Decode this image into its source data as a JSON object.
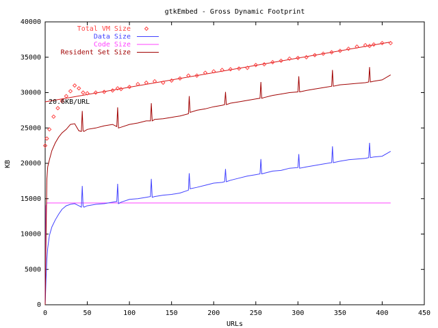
{
  "chart_data": {
    "type": "line",
    "title": "gtkEmbed - Gross Dynamic Footprint",
    "xlabel": "URLs",
    "ylabel": "KB",
    "xlim": [
      0,
      450
    ],
    "ylim": [
      0,
      40000
    ],
    "x_ticks": [
      0,
      50,
      100,
      150,
      200,
      250,
      300,
      350,
      400,
      450
    ],
    "y_ticks": [
      0,
      5000,
      10000,
      15000,
      20000,
      25000,
      30000,
      35000,
      40000
    ],
    "grid": false,
    "legend_position": "top-left",
    "annotation": "20.6KB/URL",
    "fit_line": {
      "label": "20.6KB/URL",
      "x": [
        0,
        410
      ],
      "y": [
        28700,
        37150
      ]
    },
    "series": [
      {
        "name": "Total VM Size",
        "style": "points",
        "color": "#ff4040",
        "x": [
          0,
          2,
          5,
          10,
          15,
          20,
          25,
          30,
          35,
          40,
          45,
          50,
          60,
          70,
          80,
          86,
          90,
          100,
          110,
          120,
          130,
          140,
          150,
          160,
          170,
          180,
          190,
          200,
          210,
          220,
          230,
          240,
          250,
          260,
          270,
          280,
          290,
          300,
          310,
          320,
          330,
          340,
          350,
          360,
          370,
          380,
          385,
          390,
          400,
          410
        ],
        "y": [
          22500,
          23500,
          24800,
          26600,
          27800,
          28800,
          29500,
          30200,
          31000,
          30600,
          30000,
          29900,
          30000,
          30100,
          30300,
          30600,
          30500,
          30800,
          31200,
          31400,
          31600,
          31400,
          31700,
          32000,
          32400,
          32400,
          32800,
          33000,
          33200,
          33300,
          33400,
          33500,
          33900,
          34000,
          34300,
          34500,
          34800,
          34900,
          35000,
          35300,
          35500,
          35700,
          35900,
          36200,
          36500,
          36700,
          36600,
          36800,
          37000,
          37000
        ]
      },
      {
        "name": "Data Size",
        "style": "line",
        "color": "#4040ff",
        "x": [
          0,
          1,
          2,
          3,
          5,
          8,
          12,
          16,
          20,
          25,
          30,
          35,
          40,
          43,
          44,
          45,
          46,
          50,
          60,
          70,
          80,
          85,
          86,
          87,
          90,
          100,
          110,
          120,
          125,
          126,
          127,
          130,
          140,
          150,
          160,
          170,
          171,
          172,
          180,
          190,
          200,
          210,
          213,
          214,
          215,
          220,
          230,
          240,
          250,
          255,
          256,
          257,
          260,
          270,
          280,
          290,
          300,
          301,
          302,
          310,
          320,
          330,
          340,
          341,
          342,
          350,
          360,
          370,
          380,
          384,
          385,
          386,
          390,
          400,
          410
        ],
        "y": [
          0,
          3500,
          6500,
          8000,
          9800,
          11000,
          12000,
          12800,
          13500,
          14000,
          14200,
          14300,
          14000,
          13800,
          16800,
          14000,
          13800,
          14000,
          14200,
          14300,
          14500,
          14600,
          17100,
          14300,
          14500,
          14900,
          15000,
          15200,
          15300,
          17800,
          15200,
          15300,
          15500,
          15600,
          15800,
          16200,
          18600,
          16400,
          16600,
          16900,
          17200,
          17300,
          17400,
          19200,
          17400,
          17600,
          17900,
          18200,
          18400,
          18500,
          20600,
          18500,
          18600,
          18900,
          19000,
          19300,
          19400,
          21300,
          19300,
          19500,
          19700,
          19900,
          20100,
          22400,
          20100,
          20300,
          20500,
          20600,
          20700,
          20800,
          22900,
          20800,
          20900,
          21000,
          21700
        ]
      },
      {
        "name": "Code Size",
        "style": "line",
        "color": "#ff40ff",
        "x": [
          0,
          1,
          2,
          410
        ],
        "y": [
          0,
          14000,
          14400,
          14400
        ]
      },
      {
        "name": "Resident Set Size",
        "style": "line",
        "color": "#a00000",
        "x": [
          0,
          1,
          2,
          3,
          5,
          8,
          12,
          16,
          20,
          25,
          30,
          35,
          40,
          43,
          44,
          45,
          46,
          50,
          60,
          70,
          80,
          85,
          86,
          87,
          90,
          100,
          110,
          120,
          125,
          126,
          127,
          130,
          140,
          150,
          160,
          170,
          171,
          172,
          180,
          190,
          200,
          210,
          213,
          214,
          215,
          220,
          230,
          240,
          250,
          255,
          256,
          257,
          260,
          270,
          280,
          290,
          300,
          301,
          302,
          310,
          320,
          330,
          340,
          341,
          342,
          350,
          360,
          370,
          380,
          384,
          385,
          386,
          390,
          400,
          410
        ],
        "y": [
          0,
          9000,
          17800,
          19500,
          20500,
          21800,
          22900,
          23700,
          24300,
          24800,
          25500,
          25600,
          24600,
          24500,
          27400,
          24600,
          24500,
          24800,
          25000,
          25300,
          25500,
          25200,
          27900,
          25000,
          25100,
          25500,
          25700,
          26000,
          26000,
          28500,
          26000,
          26200,
          26300,
          26500,
          26700,
          27000,
          29500,
          27200,
          27500,
          27700,
          28000,
          28200,
          28300,
          30100,
          28300,
          28500,
          28700,
          28900,
          29100,
          29200,
          31500,
          29200,
          29300,
          29600,
          29800,
          30000,
          30100,
          32300,
          30100,
          30300,
          30500,
          30700,
          30900,
          33200,
          30900,
          31100,
          31200,
          31300,
          31400,
          31500,
          33600,
          31500,
          31600,
          31800,
          32500
        ]
      }
    ]
  }
}
